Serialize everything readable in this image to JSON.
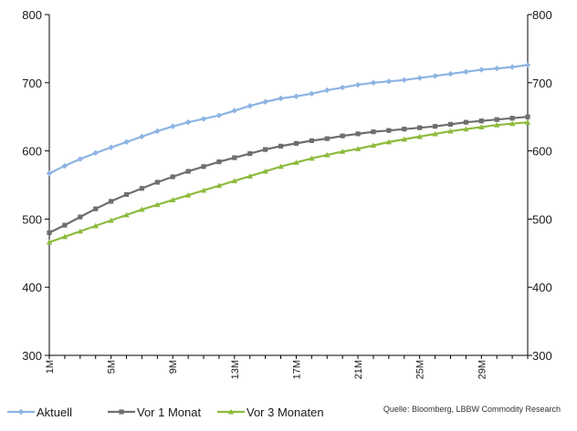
{
  "source": "Quelle: Bloomberg, LBBW Commodity Research",
  "chart_data": {
    "type": "line",
    "title": "",
    "xlabel": "",
    "ylabel": "",
    "ylim": [
      300,
      800
    ],
    "yticks": [
      300,
      400,
      500,
      600,
      700,
      800
    ],
    "x": [
      1,
      2,
      3,
      4,
      5,
      6,
      7,
      8,
      9,
      10,
      11,
      12,
      13,
      14,
      15,
      16,
      17,
      18,
      19,
      20,
      21,
      22,
      23,
      24,
      25,
      26,
      27,
      28,
      29,
      30,
      31,
      32
    ],
    "x_tick_labels": [
      {
        "x": 1,
        "label": "1M"
      },
      {
        "x": 5,
        "label": "5M"
      },
      {
        "x": 9,
        "label": "9M"
      },
      {
        "x": 13,
        "label": "13M"
      },
      {
        "x": 17,
        "label": "17M"
      },
      {
        "x": 21,
        "label": "21M"
      },
      {
        "x": 25,
        "label": "25M"
      },
      {
        "x": 29,
        "label": "29M"
      }
    ],
    "grid": false,
    "legend_position": "bottom-left",
    "series": [
      {
        "name": "Aktuell",
        "color": "#8DB4E2",
        "marker": "diamond",
        "values": [
          567,
          578,
          588,
          597,
          605,
          613,
          621,
          629,
          636,
          642,
          647,
          652,
          659,
          666,
          672,
          677,
          680,
          684,
          689,
          693,
          697,
          700,
          702,
          704,
          707,
          710,
          713,
          716,
          719,
          721,
          723,
          726
        ]
      },
      {
        "name": "Vor 1 Monat",
        "color": "#6E6E6E",
        "marker": "square",
        "values": [
          480,
          491,
          503,
          515,
          526,
          536,
          545,
          554,
          562,
          570,
          577,
          584,
          590,
          596,
          602,
          607,
          611,
          615,
          618,
          622,
          625,
          628,
          630,
          632,
          634,
          636,
          639,
          642,
          644,
          646,
          648,
          650
        ]
      },
      {
        "name": "Vor 3 Monaten",
        "color": "#8DBB3D",
        "marker": "triangle",
        "values": [
          466,
          474,
          482,
          490,
          498,
          506,
          514,
          521,
          528,
          535,
          542,
          549,
          556,
          563,
          570,
          577,
          583,
          589,
          594,
          599,
          603,
          608,
          613,
          617,
          621,
          625,
          629,
          632,
          635,
          638,
          640,
          642
        ]
      }
    ]
  }
}
